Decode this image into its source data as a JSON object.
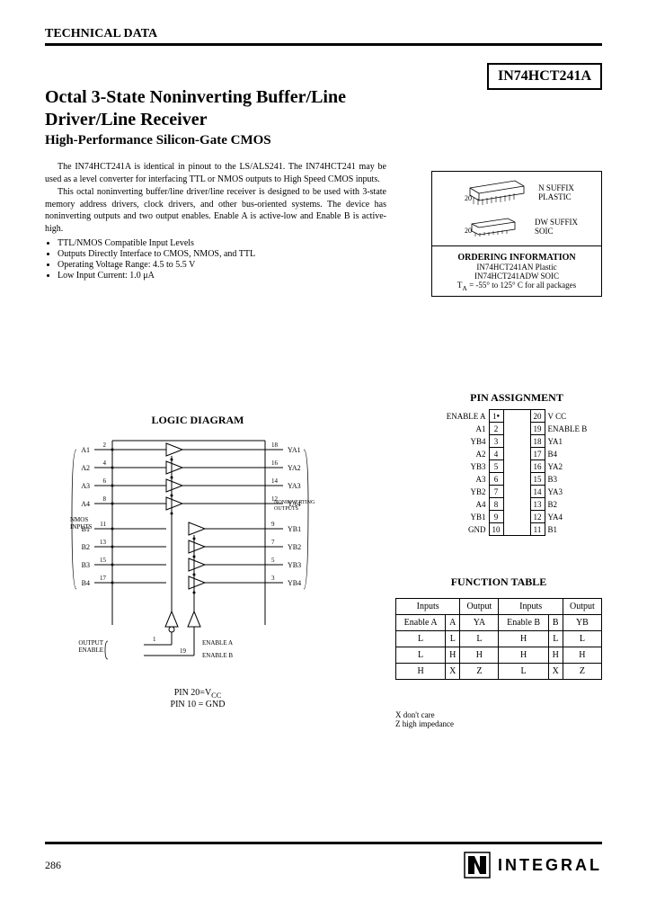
{
  "header": "TECHNICAL DATA",
  "part_number": "IN74HCT241A",
  "title": {
    "main": "Octal 3-State Noninverting Buffer/Line Driver/Line Receiver",
    "sub": "High-Performance Silicon-Gate CMOS"
  },
  "intro": {
    "p1": "The IN74HCT241A is identical in pinout to the LS/ALS241. The IN74HCT241 may be used as a level converter for interfacing TTL or NMOS outputs to High Speed CMOS inputs.",
    "p2": "This octal noninverting buffer/line driver/line receiver is designed to be used with 3-state memory address drivers, clock drivers, and other bus-oriented systems. The device has noninverting outputs and two output enables. Enable A is active-low and Enable B is active-high."
  },
  "bullets": [
    "TTL/NMOS Compatible Input Levels",
    "Outputs Directly Interface to CMOS, NMOS, and TTL",
    "Operating Voltage Range: 4.5 to 5.5 V",
    "Low Input Current: 1.0 μA"
  ],
  "packages": {
    "dip_label": "N SUFFIX\nPLASTIC",
    "dip_pins": "20",
    "soic_label": "DW SUFFIX\nSOIC",
    "soic_pins": "20",
    "ordering_title": "ORDERING INFORMATION",
    "line1": "IN74HCT241AN Plastic",
    "line2": "IN74HCT241ADW SOIC",
    "temp": "T",
    "temp_sub": "A",
    "temp_line": " = -55° to 125° C for all packages"
  },
  "pin_assignment": {
    "title": "PIN ASSIGNMENT",
    "rows": [
      {
        "l": "ENABLE A",
        "ln": "1",
        "rn": "20",
        "r": "V CC"
      },
      {
        "l": "A1",
        "ln": "2",
        "rn": "19",
        "r": "ENABLE B"
      },
      {
        "l": "YB4",
        "ln": "3",
        "rn": "18",
        "r": "YA1"
      },
      {
        "l": "A2",
        "ln": "4",
        "rn": "17",
        "r": "B4"
      },
      {
        "l": "YB3",
        "ln": "5",
        "rn": "16",
        "r": "YA2"
      },
      {
        "l": "A3",
        "ln": "6",
        "rn": "15",
        "r": "B3"
      },
      {
        "l": "YB2",
        "ln": "7",
        "rn": "14",
        "r": "YA3"
      },
      {
        "l": "A4",
        "ln": "8",
        "rn": "13",
        "r": "B2"
      },
      {
        "l": "YB1",
        "ln": "9",
        "rn": "12",
        "r": "YA4"
      },
      {
        "l": "GND",
        "ln": "10",
        "rn": "11",
        "r": "B1"
      }
    ]
  },
  "logic": {
    "title": "LOGIC DIAGRAM",
    "caption1": "PIN 20=V",
    "caption1_sub": "CC",
    "caption2": "PIN 10 = GND",
    "inputs_label": "NMOS\nINPUTS",
    "outputs_label": "NONINVERTING\nOUTPUTS",
    "enable_label": "OUTPUT\nENABLE",
    "enable_a": "ENABLE A",
    "enable_b": "ENABLE B",
    "left_pins": [
      "A1",
      "A2",
      "A3",
      "A4",
      "B1",
      "B2",
      "B3",
      "B4"
    ],
    "left_nums": [
      "2",
      "4",
      "6",
      "8",
      "11",
      "13",
      "15",
      "17"
    ],
    "right_pins": [
      "YA1",
      "YA2",
      "YA3",
      "YA4",
      "YB1",
      "YB2",
      "YB3",
      "YB4"
    ],
    "right_nums": [
      "18",
      "16",
      "14",
      "12",
      "9",
      "7",
      "5",
      "3"
    ],
    "ea_num": "1",
    "eb_num": "19"
  },
  "function_table": {
    "title": "FUNCTION TABLE",
    "headers1": [
      "Inputs",
      "Output",
      "Inputs",
      "Output"
    ],
    "headers2": [
      "Enable A",
      "A",
      "YA",
      "Enable B",
      "B",
      "YB"
    ],
    "rows": [
      [
        "L",
        "L",
        "L",
        "H",
        "L",
        "L"
      ],
      [
        "L",
        "H",
        "H",
        "H",
        "H",
        "H"
      ],
      [
        "H",
        "X",
        "Z",
        "L",
        "X",
        "Z"
      ]
    ],
    "notes": [
      "X    don't care",
      "Z    high impedance"
    ]
  },
  "footer": {
    "page": "286",
    "logo_text": "INTEGRAL"
  },
  "colors": {
    "text": "#000000",
    "bg": "#ffffff",
    "border": "#000000"
  }
}
